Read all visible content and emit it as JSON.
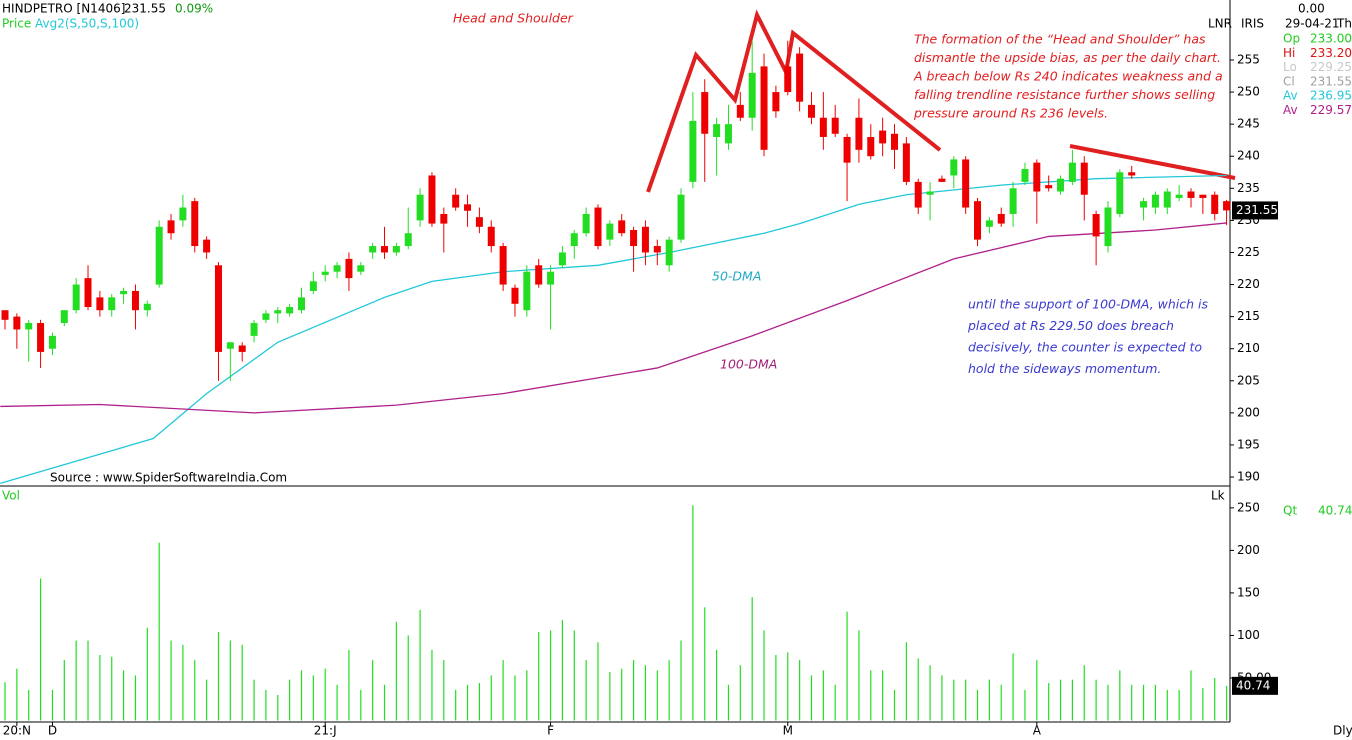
{
  "header": {
    "symbol": "HINDPETRO [N1406]",
    "last": "231.55",
    "change": "0.09%",
    "price_label": "Price",
    "avg_label": "Avg2(S,50,S,100)",
    "scale": "LNR",
    "tool": "IRIS",
    "top_value": "0.00",
    "date": "29-04-21",
    "weekday": "Th",
    "period": "Dly",
    "info": [
      {
        "label": "Op",
        "value": "233.00",
        "color": "#22cc22"
      },
      {
        "label": "Hi",
        "value": "233.20",
        "color": "#dd1111"
      },
      {
        "label": "Lo",
        "value": "229.25",
        "color": "#c8c8c8"
      },
      {
        "label": "Cl",
        "value": "231.55",
        "color": "#a0a0a0"
      },
      {
        "label": "Av",
        "value": "236.95",
        "color": "#22c8d8"
      },
      {
        "label": "Av",
        "value": "229.57",
        "color": "#b0208a"
      }
    ]
  },
  "chart_data": [
    {
      "type": "candlestick",
      "title": "Head and Shoulder",
      "annotation": [
        "The formation of the “Head and Shoulder” has",
        "dismantle the upside bias, as per the daily chart.",
        "A breach below Rs 240 indicates weakness and a",
        "falling trendline resistance further shows selling",
        "pressure around Rs 236 levels."
      ],
      "annotation2": [
        "until the support of 100-DMA, which is",
        "placed at Rs 229.50 does breach",
        "decisively, the counter is expected to",
        "hold the sideways momentum."
      ],
      "source": "Source : www.SpiderSoftwareIndia.Com",
      "up_color": "#22dd22",
      "down_color": "#ee0000",
      "open": [
        216,
        215,
        213,
        214,
        210,
        214,
        216,
        221,
        218,
        216,
        218.5,
        219,
        216,
        220,
        230,
        230,
        233,
        227,
        223,
        210,
        210.5,
        212,
        214.5,
        215.5,
        215.5,
        216,
        219,
        221.5,
        222,
        224,
        222,
        225,
        226,
        225,
        226,
        230,
        237,
        231,
        234,
        232.5,
        230.5,
        229,
        226,
        219.5,
        216,
        223,
        220,
        223,
        226,
        228,
        232,
        227,
        230,
        228.5,
        229,
        226,
        223,
        227,
        236,
        250,
        243,
        242,
        248,
        246,
        254,
        250,
        254,
        256,
        248,
        246,
        246,
        243,
        246,
        243,
        244,
        243.5,
        242,
        236,
        234,
        236.5,
        237,
        239.5,
        233,
        229,
        231,
        231,
        236,
        239,
        235.5,
        234.5,
        236,
        239,
        231,
        226,
        231,
        237.5,
        232,
        232,
        232,
        233.5,
        234.5,
        234,
        234,
        233
      ],
      "high": [
        216,
        215.5,
        214.5,
        214.5,
        212.5,
        216,
        221,
        223,
        219,
        218.5,
        219.5,
        220,
        217.5,
        230,
        231,
        234,
        233.5,
        227.5,
        223.5,
        211,
        211,
        214.5,
        216,
        216.5,
        217,
        219.5,
        222,
        223,
        223.5,
        225,
        223.5,
        226.5,
        229,
        226.5,
        232,
        235,
        237.5,
        232,
        235,
        234,
        232,
        230,
        226.5,
        220,
        223,
        224,
        223,
        226,
        228.5,
        232,
        232.5,
        230,
        231,
        229,
        230,
        227,
        227.5,
        235,
        250,
        252,
        246,
        248,
        250,
        258,
        256,
        251,
        258,
        257,
        250,
        250,
        248,
        243.5,
        249,
        245,
        246,
        245,
        243,
        236.5,
        236,
        237,
        240,
        240,
        233.5,
        230.5,
        232,
        236,
        239,
        239.5,
        237,
        237,
        241,
        240,
        231.5,
        233,
        238,
        238.5,
        233.5,
        234.5,
        235,
        235.5,
        235,
        234,
        234.5,
        233.2
      ],
      "low": [
        213,
        210,
        208,
        207,
        209,
        213.5,
        215.5,
        216,
        215,
        215,
        217,
        213,
        215,
        219.5,
        227,
        229,
        225,
        224,
        205,
        205,
        208,
        211,
        214,
        214,
        215,
        215.5,
        218.5,
        220.5,
        221,
        219,
        221.5,
        224,
        224,
        224.5,
        225.5,
        229,
        229,
        225,
        231.5,
        229,
        228,
        225,
        219,
        215,
        215,
        219.5,
        213,
        222.5,
        224,
        227.5,
        225.5,
        226,
        227.5,
        222,
        223,
        223,
        222,
        226.5,
        235,
        236,
        237,
        241,
        245.5,
        244,
        240,
        246,
        249.5,
        247,
        245,
        241,
        243,
        233,
        239,
        239.5,
        240,
        238,
        235.5,
        231,
        230,
        236,
        235,
        231,
        226,
        228,
        229,
        229,
        235.5,
        229.5,
        234.5,
        234,
        235.5,
        230,
        223,
        225,
        230.5,
        236.5,
        230,
        231,
        231,
        233,
        232,
        231,
        230,
        229.25
      ],
      "close": [
        214.5,
        213,
        214,
        209.5,
        212,
        216,
        220,
        216.5,
        216,
        218,
        219,
        216,
        217,
        229,
        228,
        232,
        226,
        225,
        209.5,
        211,
        209.5,
        214,
        215.5,
        216,
        216.5,
        218,
        220.5,
        222,
        223,
        221,
        223,
        226,
        225,
        226,
        228,
        234,
        229.5,
        229.5,
        232,
        231.5,
        229,
        226,
        220,
        217,
        222,
        220,
        222,
        225,
        228,
        231,
        226,
        229.5,
        228,
        226,
        225,
        225,
        227,
        234,
        245.5,
        243.5,
        245,
        245,
        246,
        253,
        241,
        247,
        250,
        248.5,
        246,
        243,
        243.5,
        239,
        241,
        240,
        242,
        241,
        236,
        232,
        234.5,
        236,
        239.5,
        232,
        227,
        230,
        229.5,
        235,
        238,
        234.5,
        235,
        236.5,
        239,
        234,
        227.5,
        232,
        237.5,
        237,
        233,
        234,
        234.5,
        234,
        233.5,
        233.5,
        231,
        231.55
      ],
      "series": [
        {
          "name": "50-DMA",
          "color": "#22c8d8",
          "x": [
            -0.4,
            12.5,
            17,
            23,
            32,
            36,
            42,
            50,
            56,
            64,
            67,
            72,
            76,
            84,
            92,
            103
          ],
          "values": [
            189,
            196,
            203,
            211,
            218,
            220.5,
            222,
            223,
            225,
            228,
            229.5,
            232.5,
            234,
            235.5,
            236.5,
            237
          ]
        },
        {
          "name": "100-DMA",
          "color": "#b0208a",
          "x": [
            -0.4,
            8,
            21,
            33,
            42,
            55,
            63,
            71,
            80,
            88,
            97,
            103
          ],
          "values": [
            201,
            201.3,
            200,
            201.2,
            203,
            207,
            212,
            217.5,
            224,
            227.5,
            228.5,
            229.6
          ]
        }
      ],
      "ylim": [
        188.6,
        264.35
      ],
      "yticks": [
        190,
        195,
        200,
        205,
        210,
        215,
        220,
        225,
        230,
        235,
        240,
        245,
        250,
        255
      ]
    },
    {
      "type": "bar",
      "title": "Vol",
      "unit": "Lk",
      "qty_label": "Qt",
      "qty": "40.74",
      "color": "#22dd22",
      "categories": [
        null,
        "20:N",
        null,
        null,
        "D",
        null,
        null,
        null,
        null,
        null,
        null,
        null,
        null,
        null,
        null,
        null,
        null,
        null,
        null,
        null,
        null,
        null,
        null,
        null,
        null,
        null,
        null,
        "21:J",
        null,
        null,
        null,
        null,
        null,
        null,
        null,
        null,
        null,
        null,
        null,
        null,
        null,
        null,
        null,
        null,
        null,
        null,
        "F",
        null,
        null,
        null,
        null,
        null,
        null,
        null,
        null,
        null,
        null,
        null,
        null,
        null,
        null,
        null,
        null,
        null,
        null,
        null,
        "M",
        null,
        null,
        null,
        null,
        null,
        null,
        null,
        null,
        null,
        null,
        null,
        null,
        null,
        null,
        null,
        null,
        null,
        null,
        null,
        null,
        "A",
        null,
        null,
        null,
        null,
        null,
        null,
        null,
        null,
        null,
        null,
        null,
        null,
        null,
        null,
        null,
        null
      ],
      "values": [
        45,
        61,
        36,
        167,
        36,
        71,
        94,
        94,
        77,
        75,
        59,
        53,
        109,
        209,
        94,
        89,
        71,
        48,
        104,
        94,
        89,
        48,
        36,
        30,
        48,
        59,
        53,
        61,
        42,
        83,
        36,
        71,
        42,
        116,
        100,
        130,
        83,
        71,
        36,
        42,
        44,
        53,
        71,
        53,
        59,
        104,
        106,
        118,
        106,
        71,
        92,
        57,
        61,
        71,
        65,
        59,
        71,
        94,
        253,
        133,
        83,
        42,
        65,
        145,
        106,
        77,
        80,
        71,
        53,
        59,
        42,
        128,
        106,
        59,
        59,
        36,
        92,
        73,
        65,
        53,
        48,
        48,
        36,
        48,
        42,
        79,
        36,
        71,
        44,
        48,
        48,
        65,
        48,
        42,
        59,
        42,
        42,
        42,
        36,
        36,
        59,
        38,
        50,
        40.74
      ],
      "ylim": [
        0,
        271
      ],
      "yticks": [
        {
          "value": 50,
          "label": "50.00"
        },
        100,
        150,
        200,
        250
      ]
    }
  ]
}
